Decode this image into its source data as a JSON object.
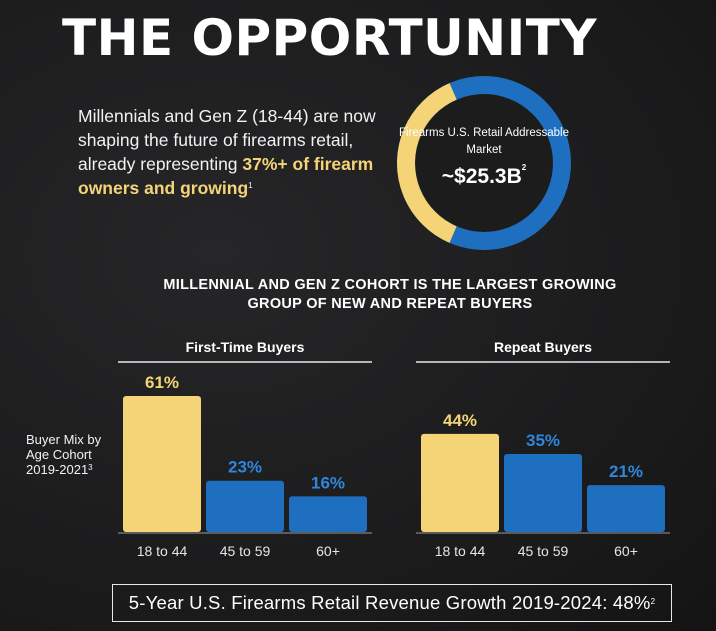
{
  "title": "THE OPPORTUNITY",
  "intro": {
    "text_before": "Millennials and Gen Z (18-44) are now shaping the future of firearms retail, already representing ",
    "highlight": "37%+ of firearm owners and growing",
    "footnote": "1"
  },
  "donut": {
    "label": "Firearms U.S. Retail Addressable Market",
    "value": "~$25.3B",
    "footnote": "2",
    "share_highlight_pct": 37,
    "colors": {
      "highlight": "#f4d476",
      "rest": "#1f6fc0"
    }
  },
  "section_title": "MILLENNIAL AND GEN Z COHORT IS THE LARGEST GROWING GROUP OF NEW AND REPEAT BUYERS",
  "y_label": {
    "text": "Buyer Mix by Age Cohort 2019-2021",
    "footnote": "3"
  },
  "colors": {
    "yellow": "#f4d476",
    "blue": "#1f6fc0",
    "label_yellow": "#f4d476",
    "label_blue": "#2e86de"
  },
  "chart_data": [
    {
      "type": "bar",
      "title": "First-Time Buyers",
      "categories": [
        "18 to 44",
        "45 to 59",
        "60+"
      ],
      "values": [
        61,
        23,
        16
      ],
      "labels": [
        "61%",
        "23%",
        "16%"
      ],
      "ylabel": "Buyer Mix by Age Cohort 2019-2021",
      "ylim": [
        0,
        61
      ]
    },
    {
      "type": "bar",
      "title": "Repeat Buyers",
      "categories": [
        "18 to 44",
        "45 to 59",
        "60+"
      ],
      "values": [
        44,
        35,
        21
      ],
      "labels": [
        "44%",
        "35%",
        "21%"
      ],
      "ylabel": "Buyer Mix by Age Cohort 2019-2021",
      "ylim": [
        0,
        61
      ]
    }
  ],
  "footer": {
    "text": "5-Year U.S. Firearms Retail Revenue Growth 2019-2024: 48%",
    "footnote": "2"
  }
}
